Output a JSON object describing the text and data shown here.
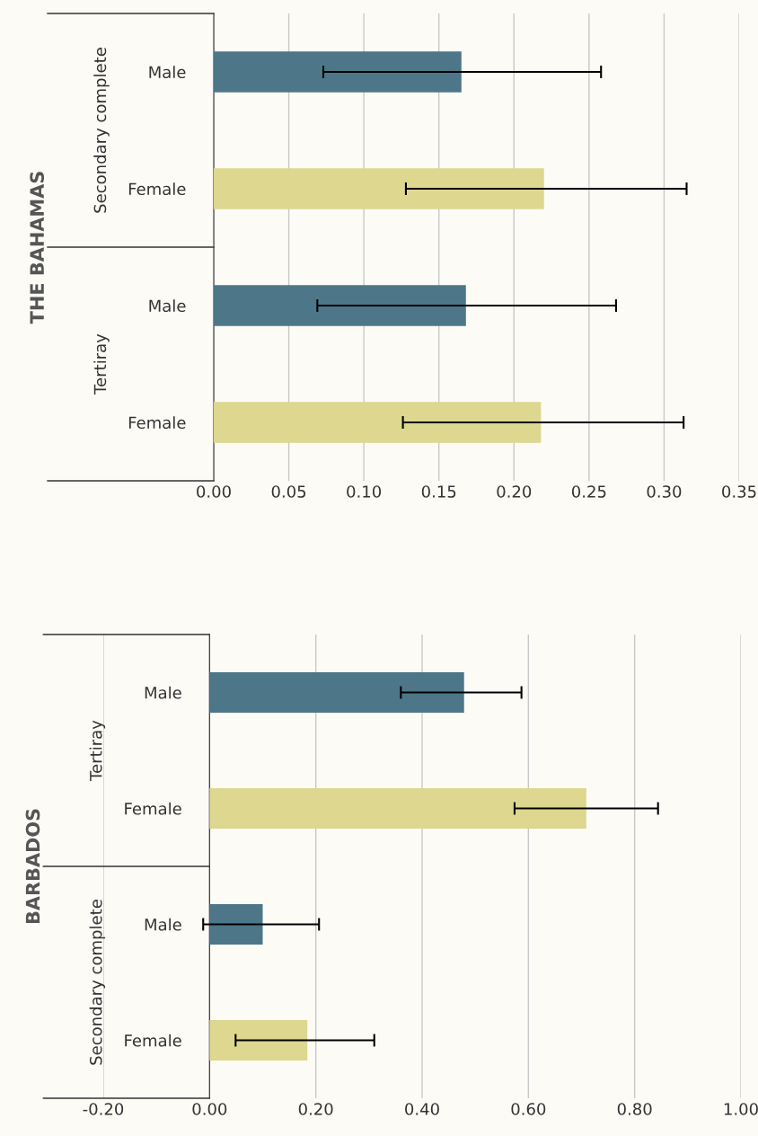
{
  "chart_data": [
    {
      "type": "bar",
      "orientation": "horizontal",
      "ylabel": "THE BAHAMAS",
      "categories": [
        "Male",
        "Female",
        "Male",
        "Female"
      ],
      "values": [
        0.165,
        0.22,
        0.168,
        0.218
      ],
      "colors": [
        "#4d7789",
        "#ddd78f",
        "#4d7789",
        "#ddd78f"
      ],
      "errors": [
        [
          0.073,
          0.258
        ],
        [
          0.128,
          0.315
        ],
        [
          0.069,
          0.268
        ],
        [
          0.126,
          0.313
        ]
      ],
      "xlim": [
        0,
        0.35
      ],
      "xticks": [
        {
          "value": 0,
          "label": "0.00"
        },
        {
          "value": 0.05,
          "label": "0.05"
        },
        {
          "value": 0.1,
          "label": "0.10"
        },
        {
          "value": 0.15,
          "label": "0.15"
        },
        {
          "value": 0.2,
          "label": "0.20"
        },
        {
          "value": 0.25,
          "label": "0.25"
        },
        {
          "value": 0.3,
          "label": "0.30"
        },
        {
          "value": 0.35,
          "label": "0.35"
        }
      ],
      "grid": "x",
      "annotations": [
        "Secondary complete",
        "Tertiray"
      ]
    },
    {
      "type": "bar",
      "orientation": "horizontal",
      "ylabel": "BARBADOS",
      "categories": [
        "Male",
        "Female",
        "Male",
        "Female"
      ],
      "values": [
        0.479,
        0.709,
        0.1,
        0.184
      ],
      "colors": [
        "#4d7789",
        "#ddd78f",
        "#4d7789",
        "#ddd78f"
      ],
      "errors": [
        [
          0.36,
          0.587
        ],
        [
          0.574,
          0.844
        ],
        [
          -0.012,
          0.206
        ],
        [
          0.049,
          0.31
        ]
      ],
      "xlim": [
        -0.2,
        1.0
      ],
      "xticks": [
        {
          "value": -0.2,
          "label": "-0.20"
        },
        {
          "value": 0,
          "label": "0.00"
        },
        {
          "value": 0.2,
          "label": "0.20"
        },
        {
          "value": 0.4,
          "label": "0.40"
        },
        {
          "value": 0.6,
          "label": "0.60"
        },
        {
          "value": 0.8,
          "label": "0.80"
        },
        {
          "value": 1.0,
          "label": "1.00"
        }
      ],
      "grid": "x",
      "annotations": [
        "Tertiray",
        "Secondary complete"
      ]
    }
  ]
}
